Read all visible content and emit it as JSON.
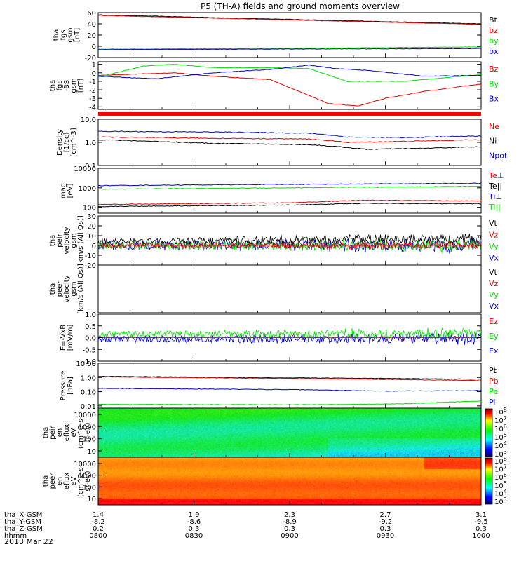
{
  "title": "P5 (TH-A) fields and ground moments overview",
  "date_label": "2013 Mar 22",
  "xaxis": {
    "ticks": [
      "0800",
      "0830",
      "0900",
      "0930",
      "1000"
    ],
    "rows": [
      {
        "label": "tha_X-GSM",
        "values": [
          "1.4",
          "1.9",
          "2.3",
          "2.7",
          "3.1"
        ]
      },
      {
        "label": "tha_Y-GSM",
        "values": [
          "-8.2",
          "-8.6",
          "-8.9",
          "-9.2",
          "-9.5"
        ]
      },
      {
        "label": "tha_Z-GSM",
        "values": [
          "0.2",
          "0.3",
          "0.3",
          "0.3",
          "0.3"
        ]
      },
      {
        "label": "hhmm",
        "values": [
          "0800",
          "0830",
          "0900",
          "0930",
          "1000"
        ]
      }
    ]
  },
  "colors": {
    "black": "#000000",
    "red": "#e00000",
    "green": "#00dd00",
    "blue": "#0000cc"
  },
  "spectrogram_colorbars": [
    {
      "panel_id": "p10",
      "ticks": [
        "10^8",
        "10^7",
        "10^6",
        "10^5",
        "10^4",
        "10^3"
      ]
    },
    {
      "panel_id": "p11",
      "ticks": [
        "10^8",
        "10^7",
        "10^6",
        "10^5",
        "10^4",
        "10^3"
      ]
    }
  ],
  "chart_data": [
    {
      "id": "p1",
      "type": "line",
      "ylabel": [
        "tha",
        "fgs",
        "gsm",
        "[nT]"
      ],
      "yticks": [
        "60",
        "40",
        "20",
        "0",
        "-20"
      ],
      "ylim": [
        -20,
        60
      ],
      "legend": [
        {
          "name": "Bt",
          "color": "black"
        },
        {
          "name": "bz",
          "color": "red"
        },
        {
          "name": "by",
          "color": "green"
        },
        {
          "name": "bx",
          "color": "blue"
        }
      ],
      "series": [
        {
          "name": "Bt",
          "color": "black",
          "x": [
            0,
            0.5,
            1
          ],
          "y": [
            56,
            48,
            40
          ]
        },
        {
          "name": "bz",
          "color": "red",
          "x": [
            0,
            0.5,
            1
          ],
          "y": [
            55,
            47,
            39
          ]
        },
        {
          "name": "by",
          "color": "green",
          "x": [
            0,
            0.5,
            1
          ],
          "y": [
            -5,
            -4,
            -1
          ]
        },
        {
          "name": "bx",
          "color": "blue",
          "x": [
            0,
            0.5,
            1
          ],
          "y": [
            -6,
            -5,
            -4
          ]
        }
      ]
    },
    {
      "id": "p2",
      "type": "line",
      "ylabel": [
        "tha",
        "fgs",
        "-BS",
        "gsm",
        "[nT]"
      ],
      "yticks": [
        "1",
        "0",
        "-1",
        "-2",
        "-3",
        "-4"
      ],
      "ylim": [
        -4.3,
        1.3
      ],
      "legend": [
        {
          "name": "Bz",
          "color": "red"
        },
        {
          "name": "By",
          "color": "green"
        },
        {
          "name": "Bx",
          "color": "blue"
        }
      ],
      "series": [
        {
          "name": "Bz",
          "color": "red",
          "x": [
            0,
            0.2,
            0.3,
            0.45,
            0.6,
            0.68,
            0.75,
            0.85,
            1
          ],
          "y": [
            -0.3,
            0,
            -0.4,
            -0.8,
            -3.6,
            -3.9,
            -3.0,
            -2.2,
            -1.3
          ]
        },
        {
          "name": "By",
          "color": "green",
          "x": [
            0,
            0.12,
            0.2,
            0.3,
            0.45,
            0.55,
            0.65,
            0.8,
            1
          ],
          "y": [
            -0.5,
            0.8,
            1.0,
            0.6,
            0.6,
            0.5,
            -1.0,
            -1.0,
            -0.2
          ]
        },
        {
          "name": "Bx",
          "color": "blue",
          "x": [
            0,
            0.15,
            0.3,
            0.45,
            0.55,
            0.62,
            0.7,
            0.85,
            1
          ],
          "y": [
            -0.4,
            -0.7,
            0,
            0.4,
            0.9,
            0.5,
            0.3,
            -0.4,
            -0.3
          ]
        }
      ]
    },
    {
      "id": "p3",
      "type": "line",
      "log": true,
      "ylabel": [
        "Density",
        "[1/cc]",
        "[cm^-3]"
      ],
      "yticks": [
        "10.0",
        "1.0",
        "0.1"
      ],
      "ylim": [
        0.1,
        10
      ],
      "legend": [
        {
          "name": "Ne",
          "color": "red"
        },
        {
          "name": "Ni",
          "color": "black"
        },
        {
          "name": "Npot",
          "color": "blue"
        }
      ],
      "series": [
        {
          "name": "Npot",
          "color": "blue",
          "x": [
            0,
            0.3,
            0.55,
            0.65,
            0.8,
            1
          ],
          "y": [
            3,
            2.8,
            2.5,
            1.7,
            1.6,
            1.9
          ]
        },
        {
          "name": "Ne",
          "color": "red",
          "x": [
            0,
            0.3,
            0.55,
            0.65,
            0.8,
            1
          ],
          "y": [
            1.7,
            1.5,
            1.4,
            1.0,
            1.1,
            1.3
          ]
        },
        {
          "name": "Ni",
          "color": "black",
          "x": [
            0,
            0.3,
            0.55,
            0.7,
            0.85,
            1
          ],
          "y": [
            1.3,
            0.9,
            0.8,
            0.5,
            0.55,
            0.65
          ]
        }
      ]
    },
    {
      "id": "p4",
      "type": "line",
      "log": true,
      "ylabel": [
        "mag",
        "[eV]"
      ],
      "yticks": [
        "10000",
        "1000",
        "100"
      ],
      "ylim": [
        50,
        10000
      ],
      "legend": [
        {
          "name": "Te⊥",
          "color": "red"
        },
        {
          "name": "Te||",
          "color": "black"
        },
        {
          "name": "Ti⊥",
          "color": "blue"
        },
        {
          "name": "Ti||",
          "color": "green"
        }
      ],
      "series": [
        {
          "name": "Ti⊥",
          "color": "blue",
          "x": [
            0,
            0.5,
            1
          ],
          "y": [
            1300,
            1500,
            1700
          ]
        },
        {
          "name": "Ti||",
          "color": "green",
          "x": [
            0,
            0.5,
            1
          ],
          "y": [
            850,
            1000,
            1200
          ]
        },
        {
          "name": "Te⊥",
          "color": "red",
          "x": [
            0,
            0.5,
            0.7,
            1
          ],
          "y": [
            140,
            170,
            230,
            210
          ]
        },
        {
          "name": "Te||",
          "color": "black",
          "x": [
            0,
            0.5,
            0.7,
            1
          ],
          "y": [
            110,
            130,
            160,
            150
          ]
        }
      ]
    },
    {
      "id": "p5",
      "type": "line",
      "noisy": true,
      "ylabel": [
        "tha",
        "peir",
        "velocity",
        "gsm",
        "[km/s (All Qs)]"
      ],
      "yticks": [
        "30",
        "20",
        "10",
        "0",
        "-10",
        "-20"
      ],
      "ylim": [
        -20,
        30
      ],
      "legend": [
        {
          "name": "Vt",
          "color": "black"
        },
        {
          "name": "Vz",
          "color": "red"
        },
        {
          "name": "Vy",
          "color": "green"
        },
        {
          "name": "Vx",
          "color": "blue"
        }
      ],
      "series": [
        {
          "name": "Vx",
          "color": "blue",
          "x": [
            0,
            1
          ],
          "y": [
            0,
            0
          ],
          "noise": 7
        },
        {
          "name": "Vy",
          "color": "green",
          "x": [
            0,
            1
          ],
          "y": [
            0,
            0
          ],
          "noise": 6
        },
        {
          "name": "Vt",
          "color": "black",
          "x": [
            0,
            1
          ],
          "y": [
            4,
            7
          ],
          "noise": 5
        },
        {
          "name": "Vz",
          "color": "red",
          "x": [
            0,
            1
          ],
          "y": [
            0,
            0
          ],
          "noise": 4
        }
      ]
    },
    {
      "id": "p6",
      "type": "line",
      "ylabel": [
        "tha",
        "peer",
        "velocity",
        "gsm",
        "[km/s (All Qs)]"
      ],
      "yticks": [],
      "ylim": [
        0,
        1
      ],
      "legend": [
        {
          "name": "Vt",
          "color": "black"
        },
        {
          "name": "Vz",
          "color": "red"
        },
        {
          "name": "Vy",
          "color": "green"
        },
        {
          "name": "Vx",
          "color": "blue"
        }
      ],
      "series": []
    },
    {
      "id": "p7",
      "type": "line",
      "noisy": true,
      "ylabel": [
        "E=-VxB",
        "[mV/m]"
      ],
      "yticks": [
        "1.0",
        "0.5",
        "0.0",
        "-0.5",
        "-1.0"
      ],
      "ylim": [
        -1,
        1
      ],
      "legend": [
        {
          "name": "Ez",
          "color": "red"
        },
        {
          "name": "Ey",
          "color": "green"
        },
        {
          "name": "Ex",
          "color": "blue"
        }
      ],
      "series": [
        {
          "name": "Ex",
          "color": "blue",
          "x": [
            0,
            1
          ],
          "y": [
            -0.05,
            -0.05
          ],
          "noise": 0.22
        },
        {
          "name": "Ey",
          "color": "green",
          "x": [
            0,
            1
          ],
          "y": [
            0.15,
            0.18
          ],
          "noise": 0.2
        },
        {
          "name": "Ez",
          "color": "red",
          "x": [
            0,
            1
          ],
          "y": [
            0,
            0
          ],
          "noise": 0.02
        }
      ]
    },
    {
      "id": "p8",
      "type": "line",
      "log": true,
      "ylabel": [
        "Pressure",
        "[nPa]"
      ],
      "yticks": [
        "10.00",
        "1.00",
        "0.10",
        "0.01"
      ],
      "ylim": [
        0.007,
        10
      ],
      "legend": [
        {
          "name": "Pt",
          "color": "black"
        },
        {
          "name": "Pb",
          "color": "red"
        },
        {
          "name": "Pe",
          "color": "green"
        },
        {
          "name": "Pi",
          "color": "blue"
        }
      ],
      "series": [
        {
          "name": "Pt",
          "color": "black",
          "x": [
            0,
            0.5,
            1
          ],
          "y": [
            1.2,
            0.95,
            0.75
          ]
        },
        {
          "name": "Pb",
          "color": "red",
          "x": [
            0,
            0.5,
            1
          ],
          "y": [
            1.1,
            0.85,
            0.6
          ]
        },
        {
          "name": "Pi",
          "color": "blue",
          "x": [
            0,
            0.5,
            0.75,
            1
          ],
          "y": [
            0.17,
            0.14,
            0.11,
            0.12
          ]
        },
        {
          "name": "Pe",
          "color": "green",
          "x": [
            0,
            0.5,
            0.8,
            1
          ],
          "y": [
            0.013,
            0.012,
            0.014,
            0.022
          ]
        }
      ]
    },
    {
      "id": "p10",
      "type": "heatmap",
      "ylabel": [
        "tha",
        "peir",
        "en",
        "eflux",
        "eV",
        "(cm^2-s-",
        "sr-eV)"
      ],
      "yticks": [
        "10000",
        "1000",
        "100",
        "10"
      ],
      "palette": "cyan-green"
    },
    {
      "id": "p11",
      "type": "heatmap",
      "ylabel": [
        "tha",
        "peer",
        "en",
        "eflux",
        "eV",
        "(cm^2-s-",
        "sr-eV)"
      ],
      "yticks": [
        "10000",
        "1000",
        "100",
        "10"
      ],
      "palette": "yellow-red"
    }
  ]
}
